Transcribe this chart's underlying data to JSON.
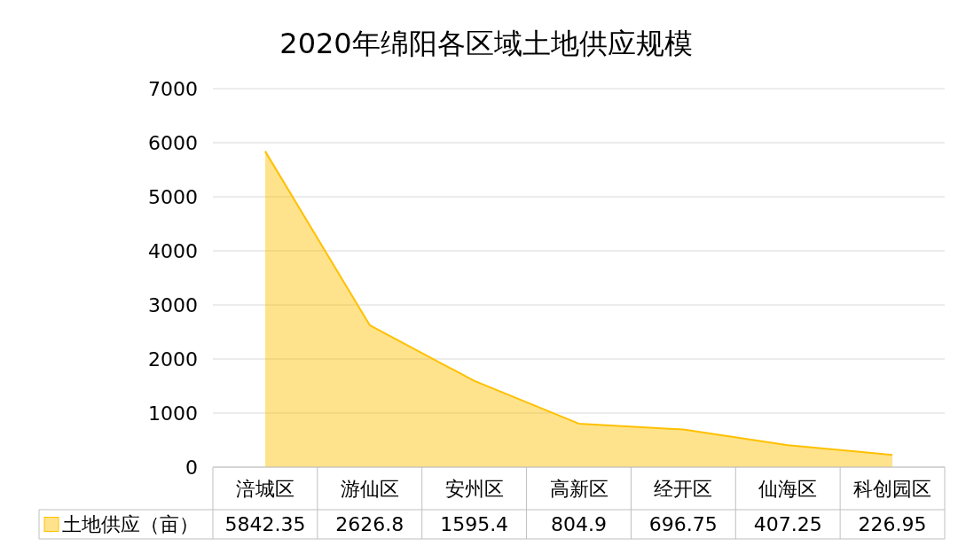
{
  "chart_data": {
    "type": "area",
    "title": "2020年绵阳各区域土地供应规模",
    "categories": [
      "涪城区",
      "游仙区",
      "安州区",
      "高新区",
      "经开区",
      "仙海区",
      "科创园区"
    ],
    "series": [
      {
        "name": "土地供应（亩）",
        "color": "#ffc000",
        "values": [
          5842.35,
          2626.8,
          1595.4,
          804.9,
          696.75,
          407.25,
          226.95
        ]
      }
    ],
    "ylim": [
      0,
      7000
    ],
    "yticks": [
      0,
      1000,
      2000,
      3000,
      4000,
      5000,
      6000,
      7000
    ],
    "grid": "y",
    "legend": "bottom left",
    "data_labels": true
  }
}
